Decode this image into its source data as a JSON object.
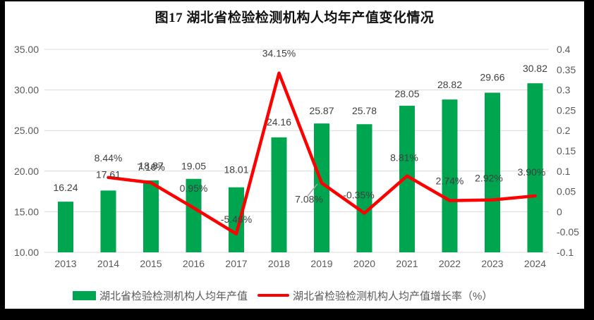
{
  "title": "图17 湖北省检验检测机构人均年产值变化情况",
  "colors": {
    "bar": "#00A550",
    "line": "#FF0000",
    "grid": "#D9D9D9",
    "axis_text": "#595959",
    "label_text": "#404040",
    "leader": "#A6A6A6",
    "chart_background": "#FFFFFF",
    "frame_background": "#000000"
  },
  "legend": {
    "bar_label": "湖北省检验检测机构人均年产值",
    "line_label": "湖北省检验检测机构人均产值增长率（%）"
  },
  "chart_data": {
    "type": "bar",
    "subtype": "combo-bar-line",
    "title": "图17 湖北省检验检测机构人均年产值变化情况",
    "categories": [
      "2013",
      "2014",
      "2015",
      "2016",
      "2017",
      "2018",
      "2019",
      "2020",
      "2021",
      "2022",
      "2023",
      "2024"
    ],
    "series": [
      {
        "name": "湖北省检验检测机构人均年产值",
        "type": "bar",
        "axis": "left",
        "values": [
          16.24,
          17.61,
          18.87,
          19.05,
          18.01,
          24.16,
          25.87,
          25.78,
          28.05,
          28.82,
          29.66,
          30.82
        ],
        "labels": [
          "16.24",
          "17.61",
          "18.87",
          "19.05",
          "18.01",
          "24.16",
          "25.87",
          "25.78",
          "28.05",
          "28.82",
          "29.66",
          "30.82"
        ]
      },
      {
        "name": "湖北省检验检测机构人均产值增长率（%）",
        "type": "line",
        "axis": "right",
        "values": [
          null,
          0.0844,
          0.0716,
          0.0095,
          -0.0546,
          0.3415,
          0.0708,
          -0.0035,
          0.0881,
          0.0274,
          0.0292,
          0.039
        ],
        "labels": [
          null,
          "8.44%",
          "7.16%",
          "0.95%",
          "-5.46%",
          "34.15%",
          "7.08%",
          "-0.35%",
          "8.81%",
          "2.74%",
          "2.92%",
          "3.90%"
        ]
      }
    ],
    "left_axis": {
      "min": 10,
      "max": 35,
      "step": 5,
      "ticks": [
        "35.00",
        "30.00",
        "25.00",
        "20.00",
        "15.00",
        "10.00"
      ]
    },
    "right_axis": {
      "min": -0.1,
      "max": 0.4,
      "step": 0.05,
      "ticks": [
        "0.4",
        "0.35",
        "0.3",
        "0.25",
        "0.2",
        "0.15",
        "0.1",
        "0.05",
        "0",
        "-0.05",
        "-0.1"
      ]
    },
    "grid": "horizontal",
    "legend_position": "bottom"
  }
}
